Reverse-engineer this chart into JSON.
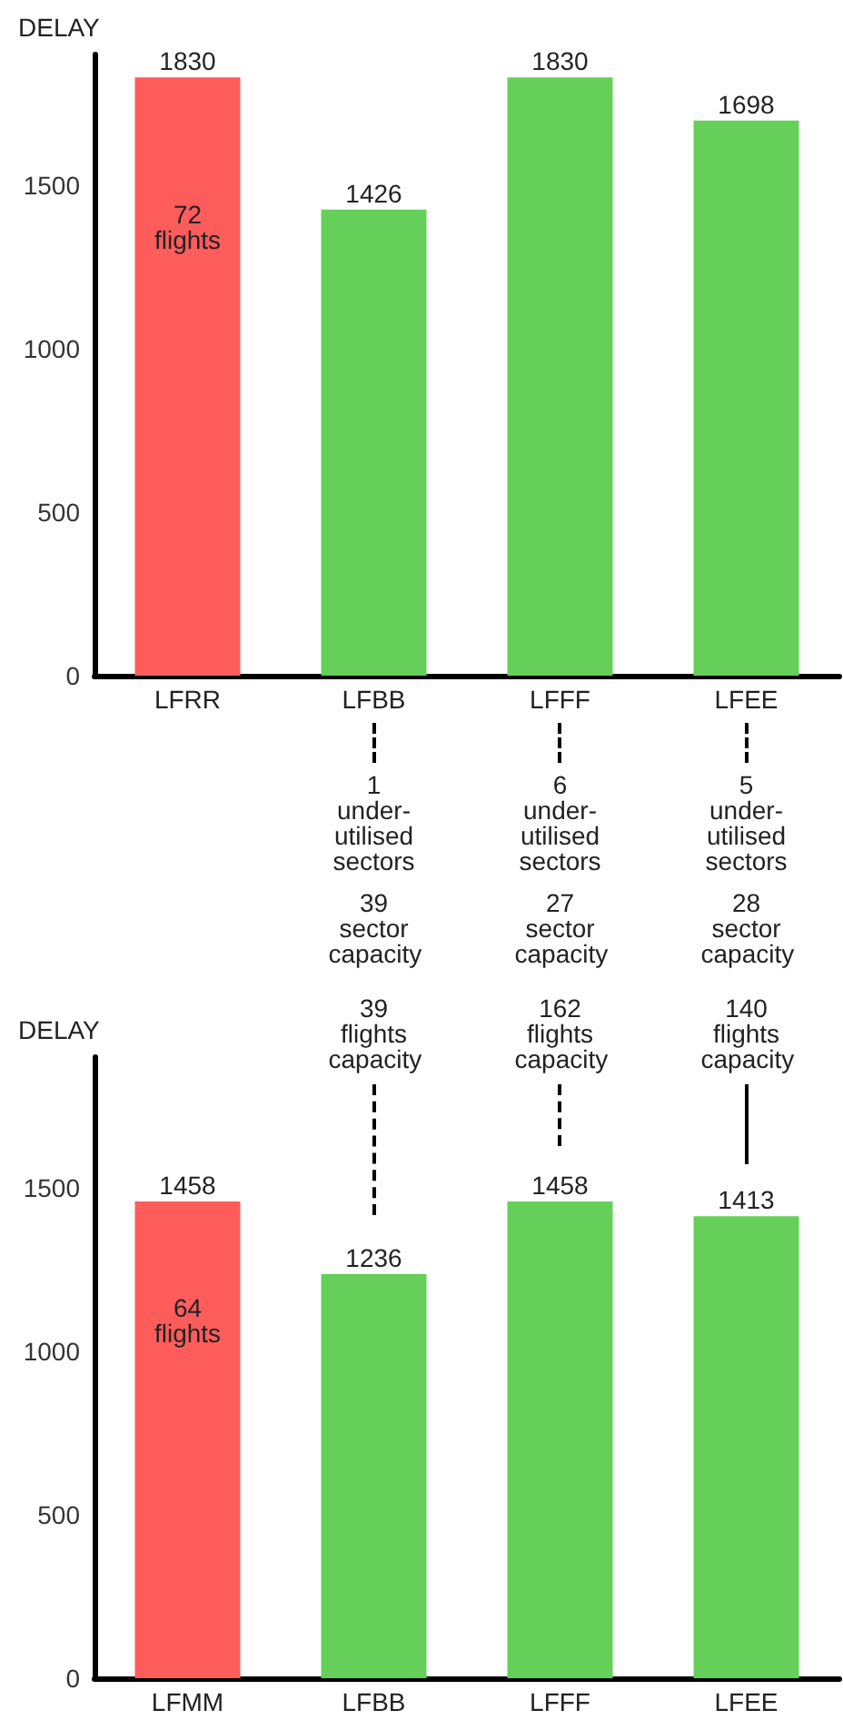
{
  "chart_data": [
    {
      "type": "bar",
      "ylabel": "DELAY",
      "categories": [
        "LFRR",
        "LFBB",
        "LFFF",
        "LFEE"
      ],
      "values": [
        1830,
        1426,
        1830,
        1698
      ],
      "colors": [
        "#ff5c5c",
        "#66cf5a",
        "#66cf5a",
        "#66cf5a"
      ],
      "ylim": [
        0,
        1900
      ],
      "yticks": [
        0,
        500,
        1000,
        1500
      ],
      "data_labels": true,
      "grid": false,
      "annotations": [
        "72 flights",
        "1 under-utilised sectors",
        "6 under-utilised sectors",
        "5 under-utilised sectors",
        "39 sector capacity",
        "27 sector capacity",
        "28 sector capacity",
        "39 flights capacity",
        "162 flights capacity",
        "140 flights capacity"
      ]
    },
    {
      "type": "bar",
      "ylabel": "DELAY",
      "categories": [
        "LFMM",
        "LFBB",
        "LFFF",
        "LFEE"
      ],
      "values": [
        1458,
        1236,
        1458,
        1413
      ],
      "colors": [
        "#ff5c5c",
        "#66cf5a",
        "#66cf5a",
        "#66cf5a"
      ],
      "ylim": [
        0,
        1900
      ],
      "yticks": [
        0,
        500,
        1000,
        1500
      ],
      "data_labels": true,
      "grid": false,
      "annotations": [
        "64 flights"
      ]
    }
  ]
}
